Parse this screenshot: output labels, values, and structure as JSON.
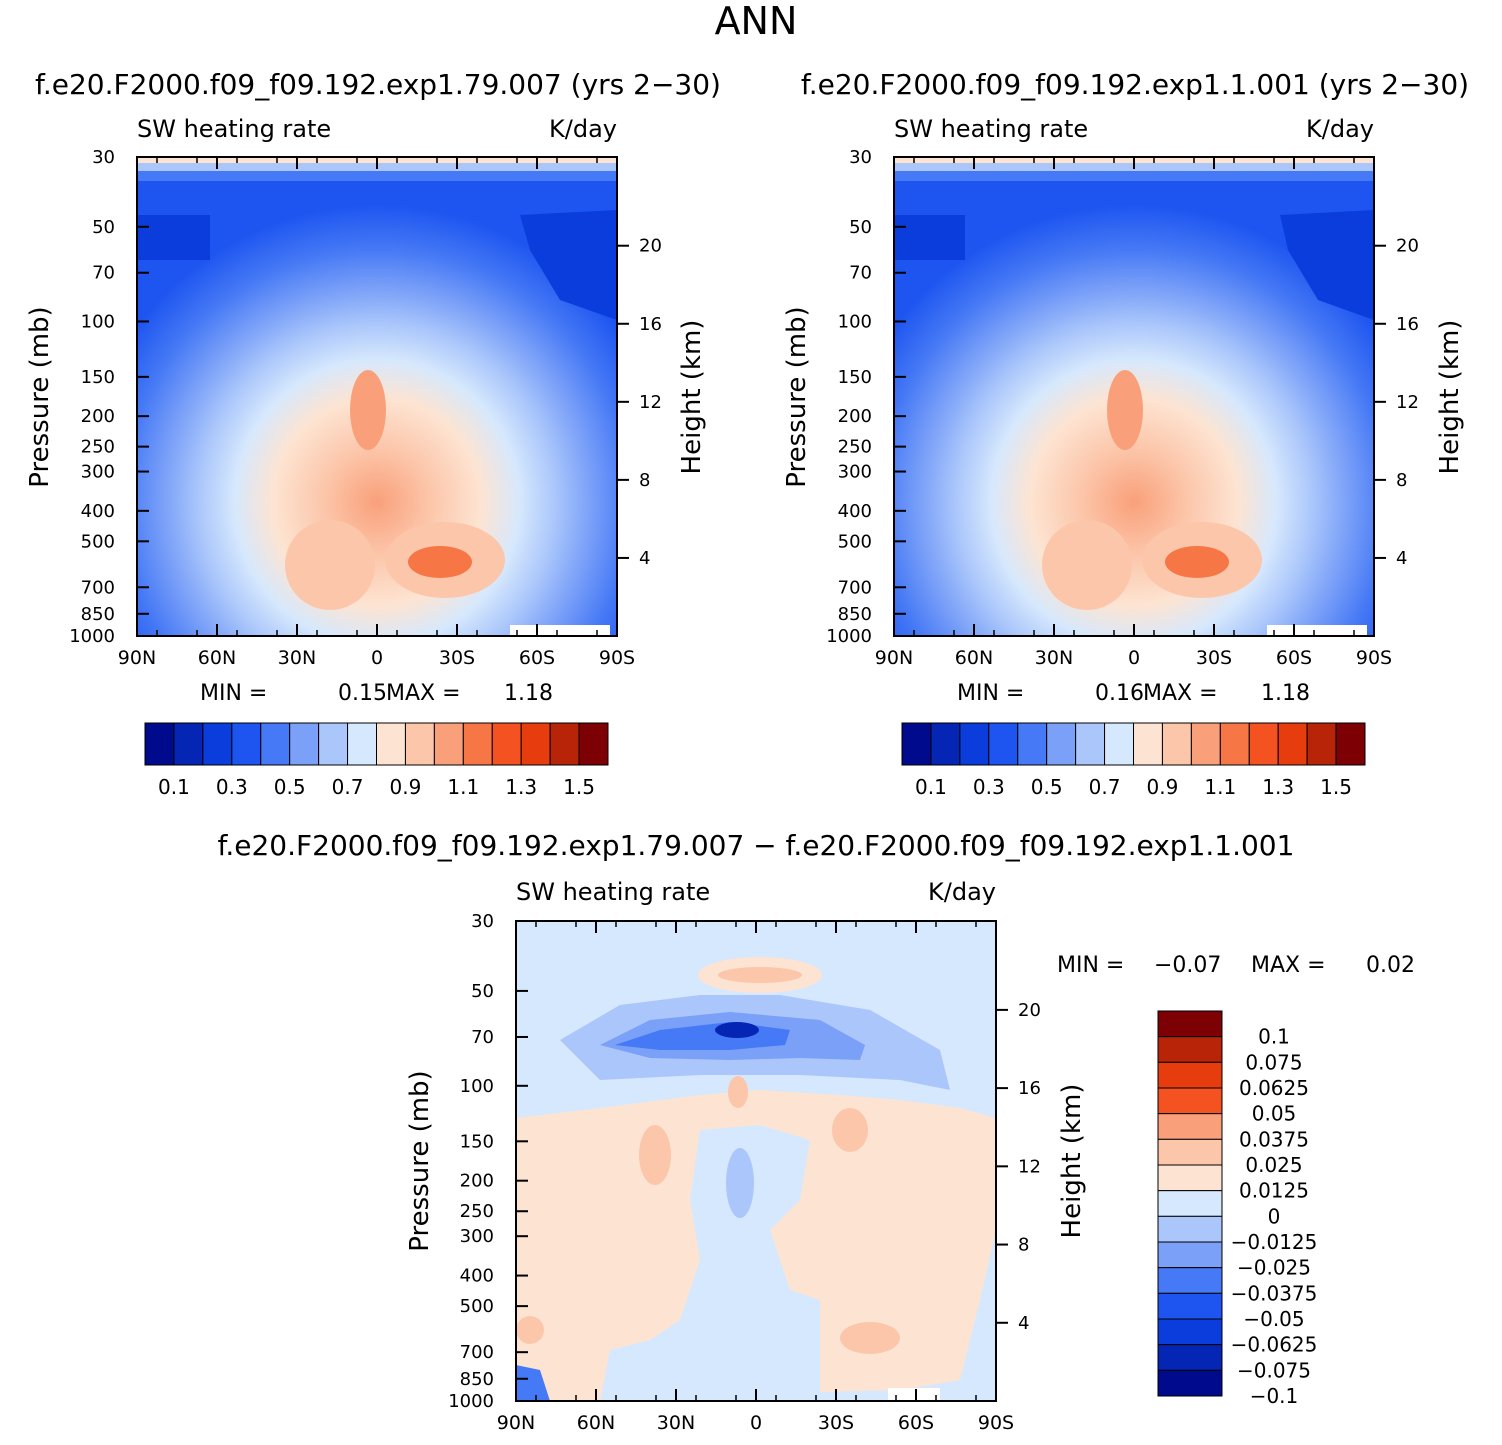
{
  "main_title": "ANN",
  "chart_data": [
    {
      "type": "contour",
      "case_title": "f.e20.F2000.f09_f09.192.exp1.79.007 (yrs 2−30)",
      "title_left": "SW heating rate",
      "title_right": "K/day",
      "ylabel": "Pressure (mb)",
      "ylabel2": "Height (km)",
      "x_ticks": [
        "90N",
        "60N",
        "30N",
        "0",
        "30S",
        "60S",
        "90S"
      ],
      "y_ticks": [
        "30",
        "50",
        "70",
        "100",
        "150",
        "200",
        "250",
        "300",
        "400",
        "500",
        "700",
        "850",
        "1000"
      ],
      "y2_ticks": [
        "20",
        "16",
        "12",
        "8",
        "4"
      ],
      "min_label": "MIN =",
      "min": "0.15",
      "max_label": "MAX =",
      "max": "1.18",
      "colorbar": {
        "colors": [
          "#000a8c",
          "#0525b4",
          "#0a3ddc",
          "#1e55f0",
          "#4679f5",
          "#7aa0f8",
          "#aac6fb",
          "#d6e8fd",
          "#fde4d2",
          "#fcc6aa",
          "#f9a07a",
          "#f77646",
          "#f55222",
          "#e63c0e",
          "#b82408",
          "#7d0005"
        ],
        "labels": [
          "0.1",
          "0.3",
          "0.5",
          "0.7",
          "0.9",
          "1.1",
          "1.3",
          "1.5"
        ]
      }
    },
    {
      "type": "contour",
      "case_title": "f.e20.F2000.f09_f09.192.exp1.1.001 (yrs 2−30)",
      "title_left": "SW heating rate",
      "title_right": "K/day",
      "ylabel": "Pressure (mb)",
      "ylabel2": "Height (km)",
      "x_ticks": [
        "90N",
        "60N",
        "30N",
        "0",
        "30S",
        "60S",
        "90S"
      ],
      "y_ticks": [
        "30",
        "50",
        "70",
        "100",
        "150",
        "200",
        "250",
        "300",
        "400",
        "500",
        "700",
        "850",
        "1000"
      ],
      "y2_ticks": [
        "20",
        "16",
        "12",
        "8",
        "4"
      ],
      "min_label": "MIN =",
      "min": "0.16",
      "max_label": "MAX =",
      "max": "1.18",
      "colorbar": {
        "colors": [
          "#000a8c",
          "#0525b4",
          "#0a3ddc",
          "#1e55f0",
          "#4679f5",
          "#7aa0f8",
          "#aac6fb",
          "#d6e8fd",
          "#fde4d2",
          "#fcc6aa",
          "#f9a07a",
          "#f77646",
          "#f55222",
          "#e63c0e",
          "#b82408",
          "#7d0005"
        ],
        "labels": [
          "0.1",
          "0.3",
          "0.5",
          "0.7",
          "0.9",
          "1.1",
          "1.3",
          "1.5"
        ]
      }
    },
    {
      "type": "contour",
      "case_title": "f.e20.F2000.f09_f09.192.exp1.79.007 − f.e20.F2000.f09_f09.192.exp1.1.001",
      "title_left": "SW heating rate",
      "title_right": "K/day",
      "ylabel": "Pressure (mb)",
      "ylabel2": "Height (km)",
      "x_ticks": [
        "90N",
        "60N",
        "30N",
        "0",
        "30S",
        "60S",
        "90S"
      ],
      "y_ticks": [
        "30",
        "50",
        "70",
        "100",
        "150",
        "200",
        "250",
        "300",
        "400",
        "500",
        "700",
        "850",
        "1000"
      ],
      "y2_ticks": [
        "20",
        "16",
        "12",
        "8",
        "4"
      ],
      "min_label": "MIN =",
      "min": "−0.07",
      "max_label": "MAX =",
      "max": "0.02",
      "colorbar": {
        "colors": [
          "#7d0005",
          "#b82408",
          "#e63c0e",
          "#f55222",
          "#f9a07a",
          "#fcc6aa",
          "#fde4d2",
          "#d6e8fd",
          "#aac6fb",
          "#7aa0f8",
          "#4679f5",
          "#1e55f0",
          "#0a3ddc",
          "#0525b4",
          "#000a8c"
        ],
        "labels": [
          "0.1",
          "0.075",
          "0.0625",
          "0.05",
          "0.0375",
          "0.025",
          "0.0125",
          "0",
          "−0.0125",
          "−0.025",
          "−0.0375",
          "−0.05",
          "−0.0625",
          "−0.075",
          "−0.1"
        ]
      }
    }
  ]
}
